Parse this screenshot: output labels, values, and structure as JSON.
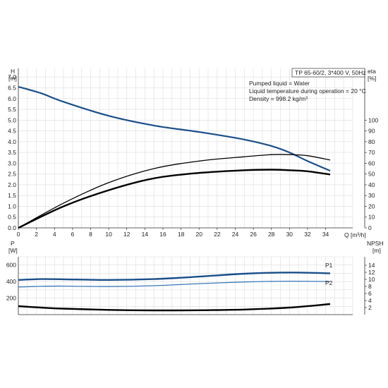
{
  "chart_data": [
    {
      "type": "line",
      "ylabel_left": [
        "H",
        "[m]"
      ],
      "ylabel_right": [
        "eta",
        "[%]"
      ],
      "xlabel": "Q [m³/h]",
      "title_box": "TP 65-60/2, 3*400 V, 50Hz",
      "annotations": [
        "Pumped liquid = Water",
        "Liquid temperature during operation = 20 °C",
        "Density = 998.2 kg/m³"
      ],
      "xlim": [
        0,
        37
      ],
      "ylim_left": [
        0,
        7.4
      ],
      "ylim_right": [
        0,
        148
      ],
      "x_ticks": [
        0,
        2,
        4,
        6,
        8,
        10,
        12,
        14,
        16,
        18,
        20,
        22,
        24,
        26,
        28,
        30,
        32,
        34
      ],
      "y_ticks_left": [
        "0.0",
        "0.5",
        "1.0",
        "1.5",
        "2.0",
        "2.5",
        "3.0",
        "3.5",
        "4.0",
        "4.5",
        "5.0",
        "5.5",
        "6.0",
        "6.5",
        "7.0"
      ],
      "y_ticks_right": [
        "0",
        "10",
        "20",
        "30",
        "40",
        "50",
        "60",
        "70",
        "80",
        "90",
        "100"
      ],
      "grid": true,
      "series": [
        {
          "axis": "left",
          "color": "#1a4f8a",
          "x": [
            0,
            2.5,
            5,
            10,
            15,
            20,
            25,
            28,
            30,
            32,
            34.5
          ],
          "y": [
            6.55,
            6.25,
            5.85,
            5.2,
            4.75,
            4.45,
            4.1,
            3.8,
            3.5,
            3.1,
            2.65
          ]
        },
        {
          "axis": "right",
          "color": "#000000",
          "x": [
            0,
            5,
            10,
            15,
            20,
            25,
            28,
            30,
            32,
            34.5
          ],
          "y": [
            0,
            23,
            42,
            55,
            62,
            66,
            68,
            68,
            67,
            63
          ]
        },
        {
          "axis": "right",
          "color": "#000000",
          "x": [
            0,
            5,
            10,
            15,
            20,
            25,
            28,
            30,
            32,
            34.5
          ],
          "y": [
            0,
            20,
            35,
            46,
            51,
            53.5,
            54,
            53.5,
            52.5,
            49.5
          ]
        }
      ]
    },
    {
      "type": "line",
      "ylabel_left": [
        "P",
        "[W]"
      ],
      "ylabel_right": [
        "NPSH",
        "[m]"
      ],
      "xlim": [
        0,
        37
      ],
      "ylim_left": [
        0,
        700
      ],
      "ylim_right": [
        0,
        16.4
      ],
      "y_ticks_left": [
        "200",
        "400",
        "600"
      ],
      "y_ticks_right": [
        "2",
        "4",
        "6",
        "8",
        "10",
        "12",
        "14"
      ],
      "grid": true,
      "series": [
        {
          "name": "P1",
          "axis": "left",
          "color": "#1a4f8a",
          "x": [
            0,
            2.5,
            5,
            10,
            15,
            20,
            25,
            30,
            34.5
          ],
          "y": [
            420,
            430,
            428,
            420,
            430,
            460,
            495,
            510,
            500
          ]
        },
        {
          "name": "P2",
          "axis": "left",
          "color": "#3a78b8",
          "x": [
            0,
            2.5,
            5,
            10,
            15,
            20,
            25,
            30,
            34.5
          ],
          "y": [
            335,
            342,
            345,
            340,
            350,
            375,
            395,
            405,
            400
          ]
        },
        {
          "axis": "right",
          "color": "#000000",
          "x": [
            0,
            2.5,
            5,
            10,
            15,
            20,
            25,
            30,
            34.5
          ],
          "y": [
            2.4,
            2.0,
            1.7,
            1.35,
            1.2,
            1.25,
            1.45,
            2.0,
            3.0
          ]
        }
      ]
    }
  ]
}
